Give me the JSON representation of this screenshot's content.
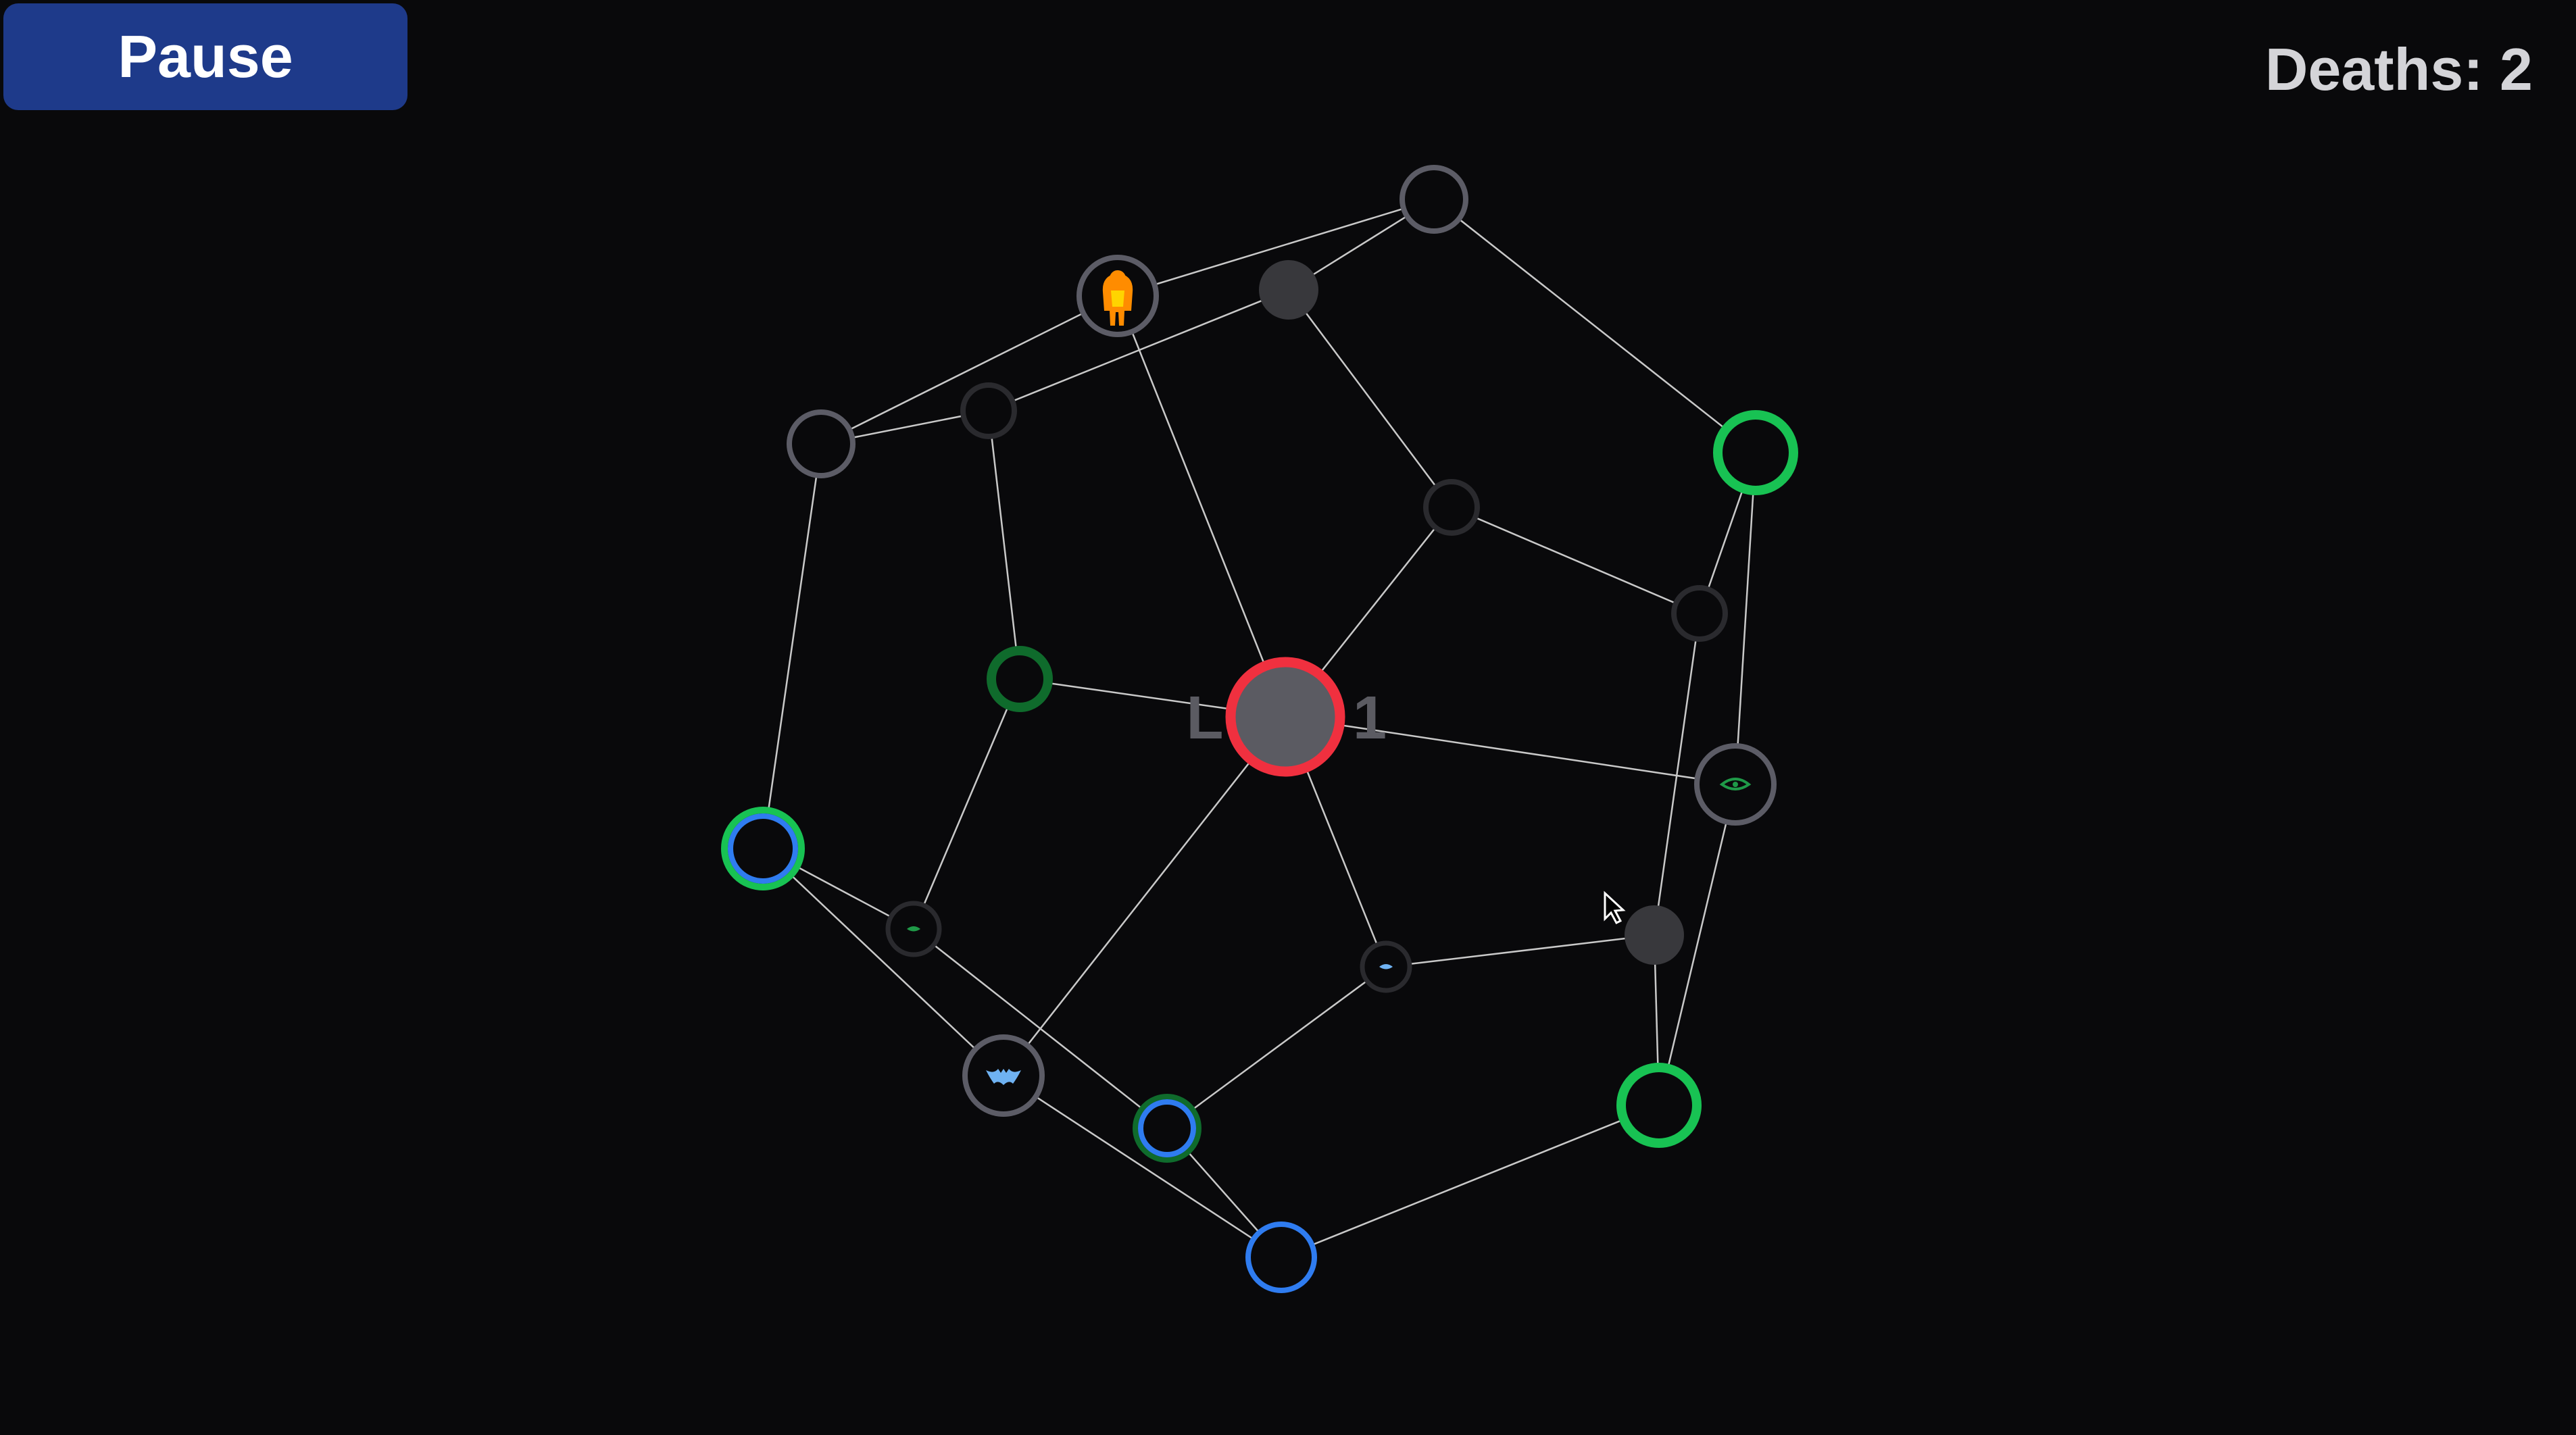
{
  "hud": {
    "pause_label": "Pause",
    "deaths_label": "Deaths: 2",
    "deaths_count": 2
  },
  "current_node": {
    "label_left": "L",
    "label_right": "1"
  },
  "nodes": [
    {
      "id": "center",
      "kind": "current-level-node",
      "icon": "current-level-ring"
    },
    {
      "id": "top-right-gray",
      "kind": "map-node",
      "icon": "empty-ring"
    },
    {
      "id": "player",
      "kind": "player-node",
      "icon": "player-figure-icon"
    },
    {
      "id": "top-dark-filled",
      "kind": "map-node",
      "icon": "filled-dot"
    },
    {
      "id": "left-gray",
      "kind": "map-node",
      "icon": "empty-ring"
    },
    {
      "id": "upper-left-dark",
      "kind": "map-node",
      "icon": "dark-ring"
    },
    {
      "id": "right-green-top",
      "kind": "map-node",
      "icon": "green-ring"
    },
    {
      "id": "mid-dark",
      "kind": "map-node",
      "icon": "dark-ring"
    },
    {
      "id": "right-dark",
      "kind": "map-node",
      "icon": "dark-ring"
    },
    {
      "id": "left-green-dark",
      "kind": "map-node",
      "icon": "green-ring"
    },
    {
      "id": "right-eye",
      "kind": "enemy-node",
      "icon": "eye-enemy-icon"
    },
    {
      "id": "left-blue-green",
      "kind": "map-node",
      "icon": "blue-green-ring"
    },
    {
      "id": "lower-dark-filled",
      "kind": "map-node",
      "icon": "filled-dot"
    },
    {
      "id": "small-left-creature",
      "kind": "enemy-node",
      "icon": "creature-icon"
    },
    {
      "id": "small-mid-creature",
      "kind": "enemy-node",
      "icon": "fish-icon"
    },
    {
      "id": "bat",
      "kind": "enemy-node",
      "icon": "bat-icon"
    },
    {
      "id": "lower-blue-dark",
      "kind": "map-node",
      "icon": "blue-ring"
    },
    {
      "id": "right-green-bottom",
      "kind": "map-node",
      "icon": "green-ring"
    },
    {
      "id": "bottom-blue",
      "kind": "map-node",
      "icon": "blue-ring"
    }
  ],
  "edges": [
    [
      "top-right-gray",
      "player"
    ],
    [
      "top-right-gray",
      "top-dark-filled"
    ],
    [
      "top-right-gray",
      "right-green-top"
    ],
    [
      "player",
      "left-gray"
    ],
    [
      "player",
      "center"
    ],
    [
      "top-dark-filled",
      "upper-left-dark"
    ],
    [
      "top-dark-filled",
      "mid-dark"
    ],
    [
      "left-gray",
      "upper-left-dark"
    ],
    [
      "left-gray",
      "left-blue-green"
    ],
    [
      "upper-left-dark",
      "left-green-dark"
    ],
    [
      "mid-dark",
      "center"
    ],
    [
      "mid-dark",
      "right-dark"
    ],
    [
      "right-green-top",
      "right-dark"
    ],
    [
      "right-green-top",
      "right-eye"
    ],
    [
      "right-dark",
      "lower-dark-filled"
    ],
    [
      "left-green-dark",
      "center"
    ],
    [
      "left-green-dark",
      "small-left-creature"
    ],
    [
      "center",
      "right-eye"
    ],
    [
      "center",
      "bat"
    ],
    [
      "center",
      "small-mid-creature"
    ],
    [
      "right-eye",
      "right-green-bottom"
    ],
    [
      "left-blue-green",
      "small-left-creature"
    ],
    [
      "left-blue-green",
      "bat"
    ],
    [
      "small-left-creature",
      "lower-blue-dark"
    ],
    [
      "small-mid-creature",
      "lower-dark-filled"
    ],
    [
      "small-mid-creature",
      "lower-blue-dark"
    ],
    [
      "lower-dark-filled",
      "right-green-bottom"
    ],
    [
      "bat",
      "bottom-blue"
    ],
    [
      "lower-blue-dark",
      "bottom-blue"
    ],
    [
      "right-green-bottom",
      "bottom-blue"
    ]
  ],
  "colors": {
    "background": "#09090b",
    "pause_button": "#1e3a8a",
    "pause_text": "#ffffff",
    "deaths_text": "#d4d4d8",
    "edge": "#c9c9c9",
    "gray_ring": "#5c5c66",
    "dark_ring": "#2a2a2e",
    "dark_fill": "#38383c",
    "green": "#18c253",
    "dark_green": "#0f6b2c",
    "blue": "#2f7cf0",
    "red": "#f0303f",
    "center_fill": "#5b5b62",
    "label_gray": "#5b5b62",
    "player_orange": "#ff8c00",
    "player_yellow": "#ffd400",
    "bat_blue": "#6fb2f2",
    "eye_green": "#1f9a48",
    "cursor": "#ffffff"
  }
}
